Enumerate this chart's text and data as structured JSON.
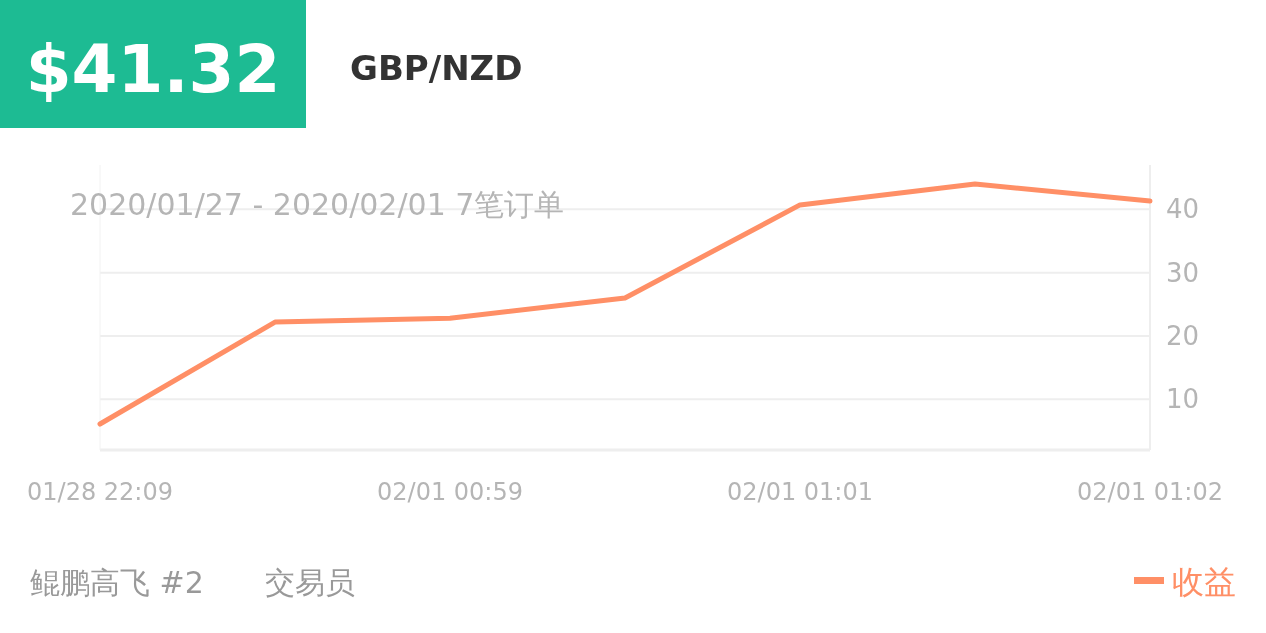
{
  "chart_data": {
    "type": "line",
    "title": "$41.32",
    "subtitle": "GBP/NZD",
    "categories": [
      "01/28 22:09",
      null,
      "02/01 00:59",
      null,
      "02/01 01:01",
      null,
      "02/01 01:02"
    ],
    "series": [
      {
        "name": "收益",
        "color": "#ff8f66",
        "values": [
          6.1,
          22.2,
          22.8,
          26.0,
          40.7,
          44.0,
          41.3
        ]
      }
    ],
    "ylim": [
      2,
      47
    ],
    "yticks": [
      10,
      20,
      30,
      40
    ],
    "grid": true,
    "legend": "bottom right",
    "marker": "none",
    "line_style": "solid",
    "annotations": [
      "2020/01/27 - 2020/02/01  7笔订单",
      "鲲鹏高飞 #2",
      "交易员"
    ]
  }
}
